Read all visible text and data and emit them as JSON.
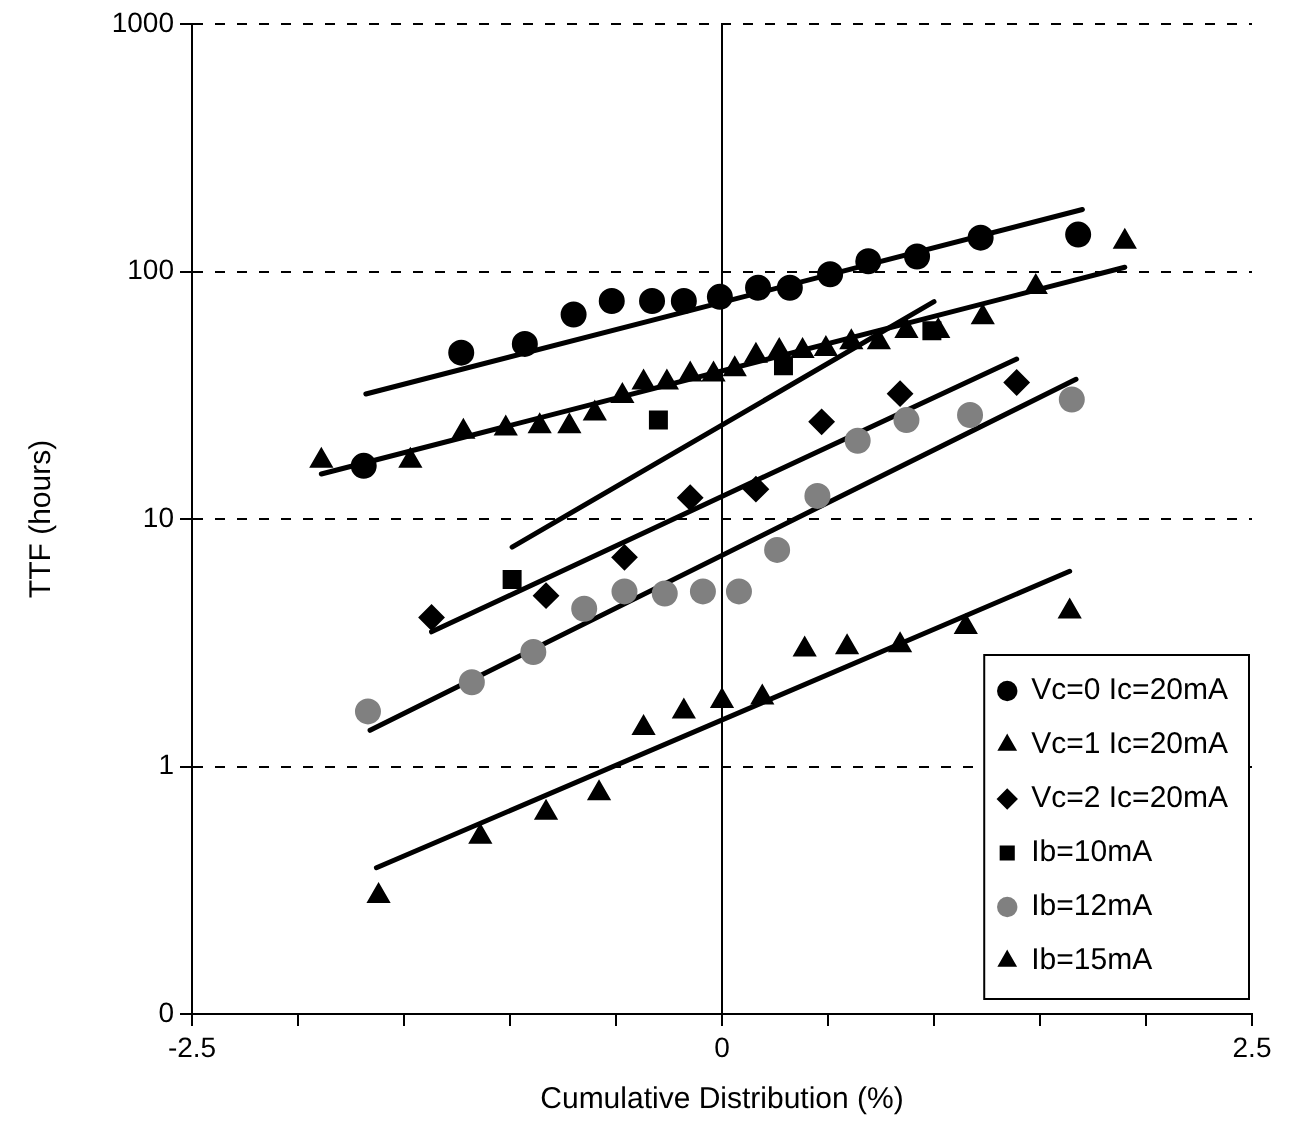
{
  "chart_data": {
    "type": "scatter",
    "xlabel": "Cumulative Distribution (%)",
    "ylabel": "TTF (hours)",
    "xlim": [
      -2.5,
      2.5
    ],
    "xticks": [
      -2.5,
      {
        "value": -2,
        "label": null
      },
      {
        "value": -1.5,
        "label": null
      },
      {
        "value": -1,
        "label": null
      },
      {
        "value": -0.5,
        "label": null
      },
      0,
      {
        "value": 0.5,
        "label": null
      },
      {
        "value": 1,
        "label": null
      },
      {
        "value": 1.5,
        "label": null
      },
      {
        "value": 2,
        "label": null
      },
      2.5
    ],
    "ylim": [
      0.1,
      1000
    ],
    "yticks": [
      {
        "value": 0.1,
        "label": "0"
      },
      1,
      10,
      100,
      1000
    ],
    "log": "y",
    "grid": "y",
    "legend": "bottom right",
    "ref_lines": [
      {
        "axis": "x",
        "value": 0,
        "label": null,
        "color": "#000000"
      }
    ],
    "series": [
      {
        "name": "Vc=0 Ic=20mA",
        "color": "#000000",
        "marker": "circle",
        "x": [
          -1.69,
          -1.23,
          -0.93,
          -0.7,
          -0.52,
          -0.33,
          -0.18,
          -0.01,
          0.17,
          0.32,
          0.51,
          0.69,
          0.92,
          1.22,
          1.68
        ],
        "values": [
          16.4,
          47,
          51,
          67,
          76,
          76,
          76,
          79,
          86,
          86,
          97.5,
          110,
          115,
          137,
          141
        ]
      },
      {
        "name": "Vc=1 Ic=20mA",
        "color": "#000000",
        "marker": "triangle",
        "x": [
          -1.89,
          -1.47,
          -1.22,
          -1.02,
          -0.86,
          -0.72,
          -0.6,
          -0.47,
          -0.37,
          -0.26,
          -0.15,
          -0.04,
          0.06,
          0.16,
          0.27,
          0.38,
          0.49,
          0.61,
          0.74,
          0.87,
          1.02,
          1.23,
          1.48,
          1.9
        ],
        "values": [
          17.2,
          17.2,
          22.5,
          23.2,
          23.7,
          23.7,
          26.7,
          31.4,
          35.6,
          35.6,
          38.4,
          38.4,
          40.3,
          45.7,
          47.7,
          47.7,
          48.6,
          51.8,
          51.8,
          57.5,
          57.5,
          65.3,
          86.5,
          132
        ]
      },
      {
        "name": "Vc=2 Ic=20mA",
        "color": "#000000",
        "marker": "diamond",
        "x": [
          -1.37,
          -0.83,
          -0.46,
          -0.15,
          0.16,
          0.47,
          0.84,
          1.39
        ],
        "values": [
          4.0,
          4.9,
          7.0,
          12.2,
          13.2,
          24.7,
          32.1,
          35.6
        ]
      },
      {
        "name": "Ib=10mA",
        "color": "#000000",
        "marker": "square",
        "x": [
          -0.99,
          -0.3,
          0.29,
          0.99
        ],
        "values": [
          5.7,
          25.1,
          41.6,
          57.6
        ]
      },
      {
        "name": "Ib=12mA",
        "color": "#808080",
        "marker": "circle",
        "x": [
          -1.67,
          -1.18,
          -0.89,
          -0.65,
          -0.46,
          -0.27,
          -0.09,
          0.08,
          0.26,
          0.45,
          0.64,
          0.87,
          1.17,
          1.65
        ],
        "values": [
          1.67,
          2.19,
          2.9,
          4.34,
          5.1,
          5.0,
          5.1,
          5.1,
          7.5,
          12.4,
          20.7,
          25.1,
          26.3,
          30.4
        ]
      },
      {
        "name": "Ib=15mA",
        "color": "#000000",
        "marker": "triangle",
        "x": [
          -1.62,
          -1.14,
          -0.83,
          -0.58,
          -0.37,
          -0.18,
          0.0,
          0.19,
          0.39,
          0.59,
          0.84,
          1.15,
          1.64
        ],
        "values": [
          0.3,
          0.52,
          0.65,
          0.78,
          1.43,
          1.67,
          1.84,
          1.9,
          2.97,
          3.03,
          3.09,
          3.66,
          4.23
        ]
      },
      {
        "type": "line",
        "color": "#000000",
        "marker": "none",
        "x": [
          -1.68,
          1.7
        ],
        "values": [
          32,
          178
        ]
      },
      {
        "type": "line",
        "color": "#000000",
        "marker": "none",
        "x": [
          -1.89,
          1.9
        ],
        "values": [
          15.2,
          104
        ]
      },
      {
        "type": "line",
        "color": "#000000",
        "marker": "none",
        "x": [
          -0.99,
          1.0
        ],
        "values": [
          7.7,
          75.5
        ]
      },
      {
        "type": "line",
        "color": "#000000",
        "marker": "none",
        "x": [
          -1.37,
          1.39
        ],
        "values": [
          3.5,
          44.3
        ]
      },
      {
        "type": "line",
        "color": "#000000",
        "marker": "none",
        "x": [
          -1.66,
          1.67
        ],
        "values": [
          1.4,
          36.7
        ]
      },
      {
        "type": "line",
        "color": "#000000",
        "marker": "none",
        "x": [
          -1.63,
          1.64
        ],
        "values": [
          0.39,
          6.15
        ]
      }
    ]
  }
}
